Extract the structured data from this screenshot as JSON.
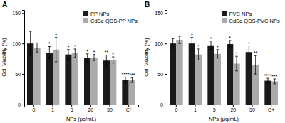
{
  "chart_data": [
    {
      "type": "bar",
      "title": "A",
      "xlabel": "NPs (μg/mL)",
      "ylabel": "Cell Viability (%)",
      "categories": [
        "0",
        "1",
        "5",
        "20",
        "50",
        "C*"
      ],
      "series": [
        {
          "name": "PP NPs",
          "color": "#1a1a1a",
          "values": [
            100,
            85,
            82,
            76,
            72,
            40
          ],
          "errors": [
            20,
            10,
            8,
            7,
            9,
            5
          ],
          "annotations": [
            null,
            "*",
            "*",
            "*",
            "**",
            "****"
          ]
        },
        {
          "name": "CdSe QDS-PP NPs",
          "color": "#aaaaaa",
          "values": [
            93,
            90,
            84,
            77,
            73,
            40
          ],
          "errors": [
            8,
            20,
            7,
            5,
            5,
            4
          ],
          "annotations": [
            null,
            "*",
            "*",
            "*",
            "*",
            "***"
          ]
        }
      ],
      "ylim": [
        0,
        155
      ],
      "yticks": [
        0,
        50,
        100,
        150
      ],
      "grid": false,
      "legend": "upper right"
    },
    {
      "type": "bar",
      "title": "B",
      "xlabel": "NPs (μg/mL)",
      "ylabel": "Cell Viability (%)",
      "categories": [
        "0",
        "1",
        "5",
        "20",
        "50",
        "C+"
      ],
      "series": [
        {
          "name": "PVC NPs",
          "color": "#1a1a1a",
          "values": [
            100,
            100,
            97,
            99,
            86,
            39
          ],
          "errors": [
            8,
            10,
            7,
            6,
            10,
            4
          ],
          "annotations": [
            null,
            "*",
            "*",
            "*",
            "*",
            "****"
          ]
        },
        {
          "name": "CdSe QDS-PVC NPs",
          "color": "#aaaaaa",
          "values": [
            106,
            82,
            83,
            67,
            65,
            38
          ],
          "errors": [
            6,
            9,
            7,
            12,
            15,
            4
          ],
          "annotations": [
            null,
            "*",
            "*",
            "*",
            "**",
            "***"
          ]
        }
      ],
      "ylim": [
        0,
        155
      ],
      "yticks": [
        0,
        50,
        100,
        150
      ],
      "grid": false,
      "legend": "upper right"
    }
  ]
}
